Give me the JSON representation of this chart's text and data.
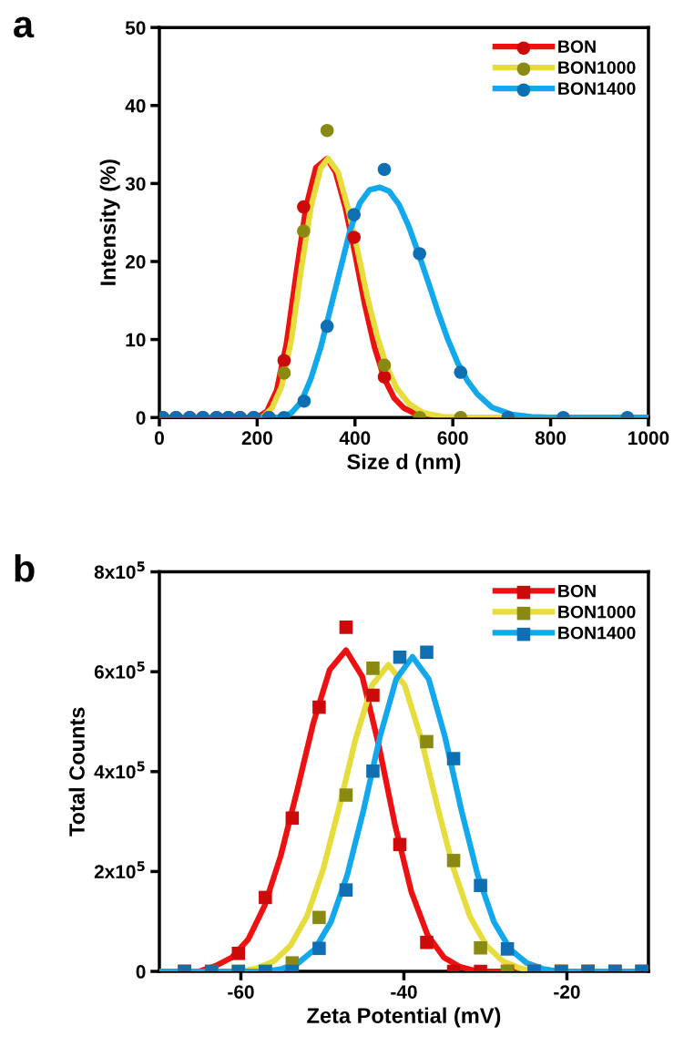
{
  "chart_data": [
    {
      "type": "line",
      "title": "a",
      "xlabel": "Size d (nm)",
      "ylabel": "Intensity (%)",
      "xlim": [
        0,
        1000
      ],
      "ylim": [
        0,
        50
      ],
      "xticks": [
        0,
        200,
        400,
        600,
        800,
        1000
      ],
      "yticks": [
        0,
        10,
        20,
        30,
        40,
        50
      ],
      "grid": false,
      "legend": "top right",
      "series": [
        {
          "type": "scatter",
          "name": "BON",
          "color": "#cc0a0a",
          "marker": "circle",
          "x": [
            7,
            34,
            62,
            89,
            117,
            141,
            165,
            193,
            224,
            255,
            295,
            398,
            460
          ],
          "values": [
            0,
            0,
            0,
            0,
            0,
            0,
            0,
            0,
            0,
            7.3,
            27.0,
            23.1,
            5.2
          ]
        },
        {
          "type": "line",
          "color": "#ee1111",
          "x": [
            0,
            200,
            220,
            240,
            260,
            280,
            300,
            320,
            343,
            360,
            380,
            400,
            420,
            440,
            460,
            480,
            500,
            530,
            560,
            1000
          ],
          "values": [
            0,
            0,
            0.8,
            3.5,
            9.5,
            18.5,
            27,
            32,
            33.2,
            31.5,
            27,
            21,
            14.5,
            9,
            5,
            2.5,
            1.2,
            0.3,
            0,
            0
          ]
        },
        {
          "type": "scatter",
          "name": "BON1000",
          "color": "#8a8a12",
          "marker": "circle",
          "x": [
            255,
            295,
            343,
            460,
            532,
            616
          ],
          "values": [
            5.7,
            23.9,
            36.8,
            6.7,
            0,
            0
          ]
        },
        {
          "type": "line",
          "color": "#e6dc3c",
          "x": [
            0,
            210,
            230,
            250,
            270,
            290,
            310,
            330,
            345,
            365,
            385,
            405,
            425,
            445,
            465,
            485,
            510,
            540,
            580,
            620,
            1000
          ],
          "values": [
            0,
            0,
            1.2,
            4,
            10,
            19,
            27,
            32,
            33.2,
            31.5,
            27,
            21.5,
            15.5,
            10.5,
            6.5,
            3.8,
            1.8,
            0.6,
            0.1,
            0,
            0
          ]
        },
        {
          "type": "scatter",
          "name": "BON1400",
          "color": "#0e6fb3",
          "marker": "circle",
          "x": [
            7,
            34,
            62,
            89,
            117,
            141,
            165,
            193,
            224,
            255,
            296,
            343,
            398,
            460,
            532,
            616,
            713,
            826,
            957
          ],
          "values": [
            0,
            0,
            0,
            0,
            0,
            0,
            0,
            0,
            0,
            0,
            2.1,
            11.7,
            26.0,
            31.8,
            21.0,
            5.8,
            0,
            0,
            0
          ]
        },
        {
          "type": "line",
          "color": "#12a8ec",
          "x": [
            0,
            250,
            270,
            290,
            310,
            330,
            350,
            370,
            390,
            410,
            430,
            451,
            470,
            490,
            510,
            530,
            550,
            570,
            590,
            610,
            630,
            650,
            680,
            720,
            760,
            800,
            1000
          ],
          "values": [
            0,
            0,
            0.6,
            2,
            5,
            9,
            14,
            19,
            24,
            27.5,
            29.2,
            29.5,
            29,
            27.3,
            24.5,
            21,
            17.3,
            13.5,
            10,
            7,
            4.7,
            3,
            1.3,
            0.4,
            0.1,
            0,
            0
          ]
        }
      ]
    },
    {
      "type": "line",
      "title": "b",
      "xlabel": "Zeta Potential (mV)",
      "ylabel": "Total Counts",
      "xlim": [
        -70,
        -10
      ],
      "ylim": [
        0,
        800000
      ],
      "xticks": [
        -60,
        -40,
        -20
      ],
      "yticks": [
        0,
        {
          "value": 200000,
          "label": "2x10$^{5}$"
        },
        {
          "value": 400000,
          "label": "4x10$^{5}$"
        },
        {
          "value": 600000,
          "label": "6x10$^{5}$"
        },
        {
          "value": 800000,
          "label": "8x10$^{5}$"
        }
      ],
      "grid": false,
      "legend": "top right",
      "series": [
        {
          "type": "scatter",
          "name": "BON",
          "color": "#cc0a0a",
          "marker": "square",
          "x": [
            -66.9,
            -63.6,
            -60.3,
            -57.0,
            -53.7,
            -50.4,
            -47.1,
            -43.8,
            -40.5,
            -37.2,
            -33.9,
            -30.6,
            -27.3,
            -24.0,
            -20.7,
            -17.4,
            -14.1,
            -10.8
          ],
          "values": [
            0,
            null,
            36000,
            148000,
            307000,
            529000,
            689000,
            553000,
            254000,
            58000,
            0,
            0,
            0,
            0,
            0,
            0,
            0,
            0
          ]
        },
        {
          "type": "line",
          "color": "#ee1111",
          "x": [
            -70,
            -65.1,
            -63.1,
            -61.1,
            -59.1,
            -57.1,
            -55.1,
            -53.1,
            -51.1,
            -49.1,
            -47.1,
            -45.1,
            -43.1,
            -41.1,
            -39.1,
            -37.1,
            -35.1,
            -33.1,
            -31,
            -10
          ],
          "values": [
            0,
            0,
            11000,
            28000,
            64000,
            131000,
            232000,
            362000,
            498000,
            604000,
            643000,
            590000,
            454000,
            294000,
            160000,
            73000,
            28000,
            9000,
            0,
            0
          ]
        },
        {
          "type": "scatter",
          "name": "BON1000",
          "color": "#8a8a12",
          "marker": "square",
          "x": [
            -66.9,
            -63.6,
            -60.3,
            -57.0,
            -53.7,
            -50.4,
            -47.1,
            -43.8,
            -40.5,
            -37.2,
            -33.9,
            -30.6,
            -27.3,
            -24.0,
            -20.7,
            -17.4,
            -14.1,
            -10.8
          ],
          "values": [
            0,
            0,
            0,
            0,
            17000,
            108000,
            353000,
            607000,
            null,
            460000,
            222000,
            47000,
            0,
            0,
            0,
            0,
            0,
            0
          ]
        },
        {
          "type": "line",
          "color": "#e6dc3c",
          "x": [
            -70,
            -59.9,
            -57.9,
            -55.9,
            -53.9,
            -51.9,
            -49.9,
            -47.9,
            -45.9,
            -43.9,
            -41.9,
            -39.9,
            -37.9,
            -35.9,
            -33.9,
            -31.9,
            -29.9,
            -27.9,
            -25.9,
            -23.9,
            -10
          ],
          "values": [
            0,
            0,
            7000,
            21000,
            52000,
            110000,
            205000,
            331000,
            467000,
            573000,
            614000,
            573000,
            467000,
            331000,
            205000,
            110000,
            52000,
            21000,
            7000,
            0,
            0
          ]
        },
        {
          "type": "scatter",
          "name": "BON1400",
          "color": "#0e6fb3",
          "marker": "square",
          "x": [
            -66.9,
            -63.6,
            -60.3,
            -57.0,
            -53.7,
            -50.4,
            -47.1,
            -43.8,
            -40.5,
            -37.2,
            -33.9,
            -30.6,
            -27.3,
            -24.0,
            -20.7,
            -17.4,
            -14.1,
            -10.8
          ],
          "values": [
            0,
            0,
            0,
            0,
            0,
            46000,
            163000,
            401000,
            629000,
            639000,
            426000,
            172000,
            45000,
            0,
            0,
            0,
            0,
            0
          ]
        },
        {
          "type": "line",
          "color": "#12a8ec",
          "x": [
            -70,
            -56.95,
            -54.95,
            -52.95,
            -50.95,
            -48.95,
            -46.95,
            -44.95,
            -42.95,
            -40.95,
            -38.95,
            -36.95,
            -34.95,
            -32.95,
            -30.95,
            -28.95,
            -26.95,
            -24.95,
            -22.95,
            -20.95,
            -10
          ],
          "values": [
            0,
            0,
            5000,
            17000,
            44000,
            99000,
            193000,
            323000,
            469000,
            585000,
            630000,
            585000,
            469000,
            323000,
            193000,
            99000,
            44000,
            17000,
            5000,
            0,
            0
          ]
        }
      ]
    }
  ]
}
